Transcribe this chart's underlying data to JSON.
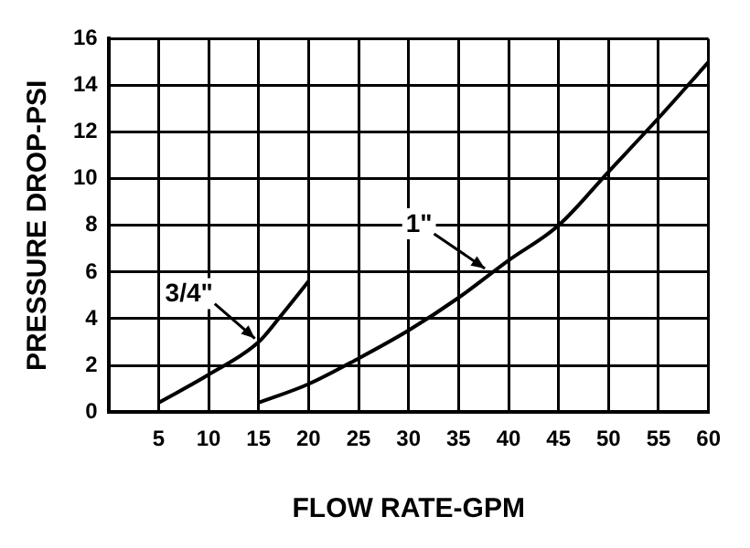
{
  "chart_data": {
    "type": "line",
    "xlabel": "FLOW RATE-GPM",
    "ylabel": "PRESSURE DROP-PSI",
    "xlim": [
      0,
      60
    ],
    "xticks": [
      5,
      10,
      15,
      20,
      25,
      30,
      35,
      40,
      45,
      50,
      55,
      60
    ],
    "ylim": [
      0,
      16
    ],
    "yticks": [
      0,
      2,
      4,
      6,
      8,
      10,
      12,
      14,
      16
    ],
    "grid": true,
    "legend": false,
    "marker": "none",
    "line_style": "solid",
    "series": [
      {
        "color": "#000000",
        "x": [
          5,
          10,
          15,
          17,
          20
        ],
        "values": [
          0.4,
          1.6,
          3.0,
          4.0,
          5.6
        ]
      },
      {
        "color": "#000000",
        "x": [
          15,
          20,
          25,
          30,
          35,
          40,
          45,
          50,
          55,
          60
        ],
        "values": [
          0.4,
          1.2,
          2.3,
          3.5,
          4.9,
          6.5,
          8.0,
          10.3,
          12.6,
          15
        ]
      }
    ],
    "annotations": [
      {
        "text": "3/4\"",
        "x": 15,
        "y": 3.0
      },
      {
        "text": "1\"",
        "x": 38,
        "y": 6.0
      }
    ]
  }
}
